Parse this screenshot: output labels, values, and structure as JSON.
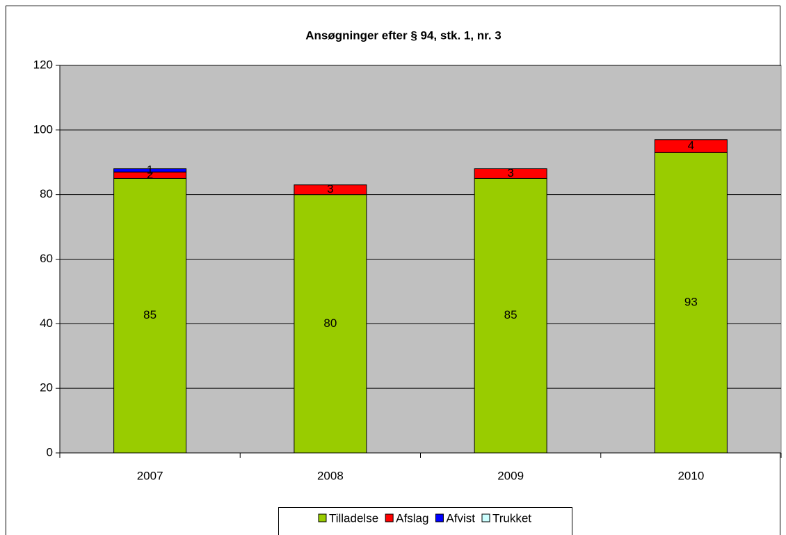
{
  "chart_data": {
    "type": "stacked_bar",
    "title": "Ansøgninger efter § 94, stk. 1, nr. 3",
    "categories": [
      "2007",
      "2008",
      "2009",
      "2010"
    ],
    "series": [
      {
        "name": "Tilladelse",
        "color": "#99cc00",
        "values": [
          85,
          80,
          85,
          93
        ]
      },
      {
        "name": "Afslag",
        "color": "#ff0000",
        "values": [
          2,
          3,
          3,
          4
        ]
      },
      {
        "name": "Afvist",
        "color": "#0000ff",
        "values": [
          1,
          null,
          null,
          null
        ]
      },
      {
        "name": "Trukket",
        "color": "#ccffff",
        "values": [
          null,
          null,
          null,
          null
        ]
      }
    ],
    "ylim": [
      0,
      120
    ],
    "yticks": [
      0,
      20,
      40,
      60,
      80,
      100,
      120
    ],
    "grid": true,
    "legend": "bottom"
  }
}
